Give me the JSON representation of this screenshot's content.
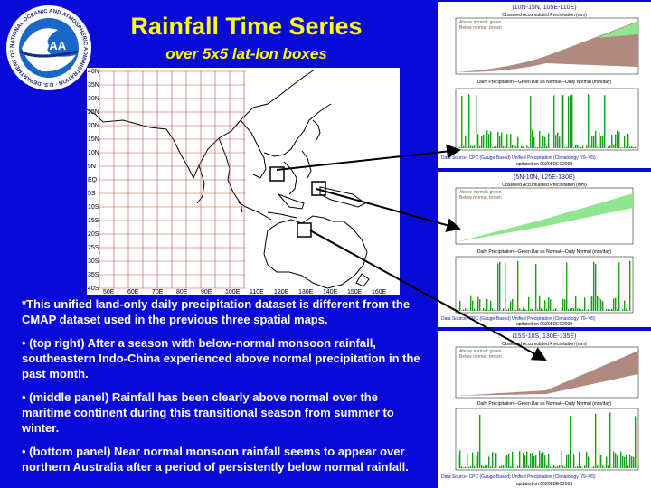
{
  "header": {
    "title": "Rainfall Time Series",
    "subtitle": "over 5x5 lat-lon boxes"
  },
  "logo": {
    "text": "NOAA",
    "ring_text": "NATIONAL OCEANIC AND ATMOSPHERIC ADMINISTRATION · U.S. DEPARTMENT OF COMMERCE"
  },
  "map": {
    "lat_labels": [
      "40N",
      "35N",
      "30N",
      "25N",
      "20N",
      "15N",
      "10N",
      "5N",
      "EQ",
      "5S",
      "10S",
      "15S",
      "20S",
      "25S",
      "30S",
      "35S",
      "40S"
    ],
    "lon_labels": [
      "50E",
      "60E",
      "70E",
      "80E",
      "90E",
      "100E",
      "110E",
      "120E",
      "130E",
      "140E",
      "150E",
      "160E"
    ]
  },
  "panels": {
    "top": {
      "header": "(10N-15N, 105E-110E)",
      "cum_title": "Observed Accumulated Precipitation (mm)",
      "legend_above": "Above normal: green",
      "legend_below": "Below normal: brown",
      "daily_title": "Daily Precipitation—Green Bar as Normal—Daily Normal (mm/day)",
      "source": "Data Source: CPC (Gauge-Based) Unified Precipitation (Climatology '79–'05)",
      "updated": "updated on 00Z08DEC2009"
    },
    "mid": {
      "header": "(5N-10N, 125E-130E)",
      "cum_title": "Observed Accumulated Precipitation (mm)",
      "legend_above": "Above normal: green",
      "legend_below": "Below normal: brown",
      "daily_title": "Daily Precipitation—Green Bar as Normal—Daily Normal (mm/day)",
      "source": "Data Source: CPC (Gauge-Based) Unified Precipitation (Climatology '79–'05)",
      "updated": "updated on 00Z08DEC2009"
    },
    "bot": {
      "header": "(15S-10S, 130E-135E)",
      "cum_title": "Observed Accumulated Precipitation (mm)",
      "legend_above": "Above normal: green",
      "legend_below": "Below normal: brown",
      "daily_title": "Daily Precipitation—Green Bar as Normal—Daily Normal (mm/day)",
      "source": "Data Source: CPC (Gauge-Based) Unified Precipitation (Climatology '79–'05)",
      "updated": "updated on 00Z08DEC2009"
    }
  },
  "body": {
    "paragraphs": [
      " *This unified land-only daily precipitation dataset is different from the CMAP dataset used in the previous three spatial maps.",
      "• (top right) After a season with below-normal monsoon rainfall, southeastern Indo-China experienced above normal precipitation in the past month.",
      "• (middle panel) Rainfall has been clearly above normal over the maritime continent during this transitional season from summer to winter.",
      "• (bottom panel) Near normal monsoon rainfall seems to appear over northern Australia after a period of persistently below normal rainfall."
    ]
  },
  "colors": {
    "background": "#0a0ad8",
    "title": "#ffff00",
    "above_normal": "#8ee68e",
    "below_normal": "#b08a80",
    "bar": "#18a018",
    "grid": "#c05050",
    "header_text": "#1a1aa0"
  }
}
